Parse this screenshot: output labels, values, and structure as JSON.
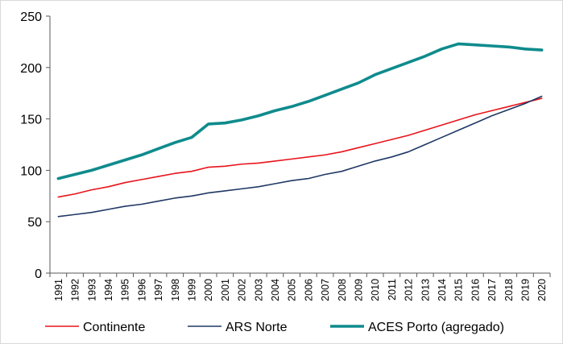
{
  "chart_data": {
    "type": "line",
    "title": "",
    "xlabel": "",
    "ylabel": "",
    "ylim": [
      0,
      250
    ],
    "yticks": [
      "0",
      "50",
      "100",
      "150",
      "200",
      "250"
    ],
    "grid": false,
    "legend_position": "bottom",
    "x": [
      "1991",
      "1992",
      "1993",
      "1994",
      "1995",
      "1996",
      "1997",
      "1998",
      "1999",
      "2000",
      "2001",
      "2002",
      "2003",
      "2004",
      "2005",
      "2006",
      "2007",
      "2008",
      "2009",
      "2010",
      "2011",
      "2012",
      "2013",
      "2014",
      "2015",
      "2016",
      "2017",
      "2018",
      "2019",
      "2020"
    ],
    "series": [
      {
        "name": "Continente",
        "color": "#e8131b",
        "values": [
          74,
          77,
          81,
          84,
          88,
          91,
          94,
          97,
          99,
          103,
          104,
          106,
          107,
          109,
          111,
          113,
          115,
          118,
          122,
          126,
          130,
          134,
          139,
          144,
          149,
          154,
          158,
          162,
          166,
          170
        ]
      },
      {
        "name": "ARS Norte",
        "color": "#1f3864",
        "values": [
          55,
          57,
          59,
          62,
          65,
          67,
          70,
          73,
          75,
          78,
          80,
          82,
          84,
          87,
          90,
          92,
          96,
          99,
          104,
          109,
          113,
          118,
          125,
          132,
          139,
          146,
          153,
          159,
          165,
          172
        ]
      },
      {
        "name": "ACES Porto (agregado)",
        "color": "#0f8b8d",
        "values": [
          92,
          96,
          100,
          105,
          110,
          115,
          121,
          127,
          132,
          145,
          146,
          149,
          153,
          158,
          162,
          167,
          173,
          179,
          185,
          193,
          199,
          205,
          211,
          218,
          223,
          222,
          221,
          220,
          218,
          217
        ]
      }
    ]
  }
}
